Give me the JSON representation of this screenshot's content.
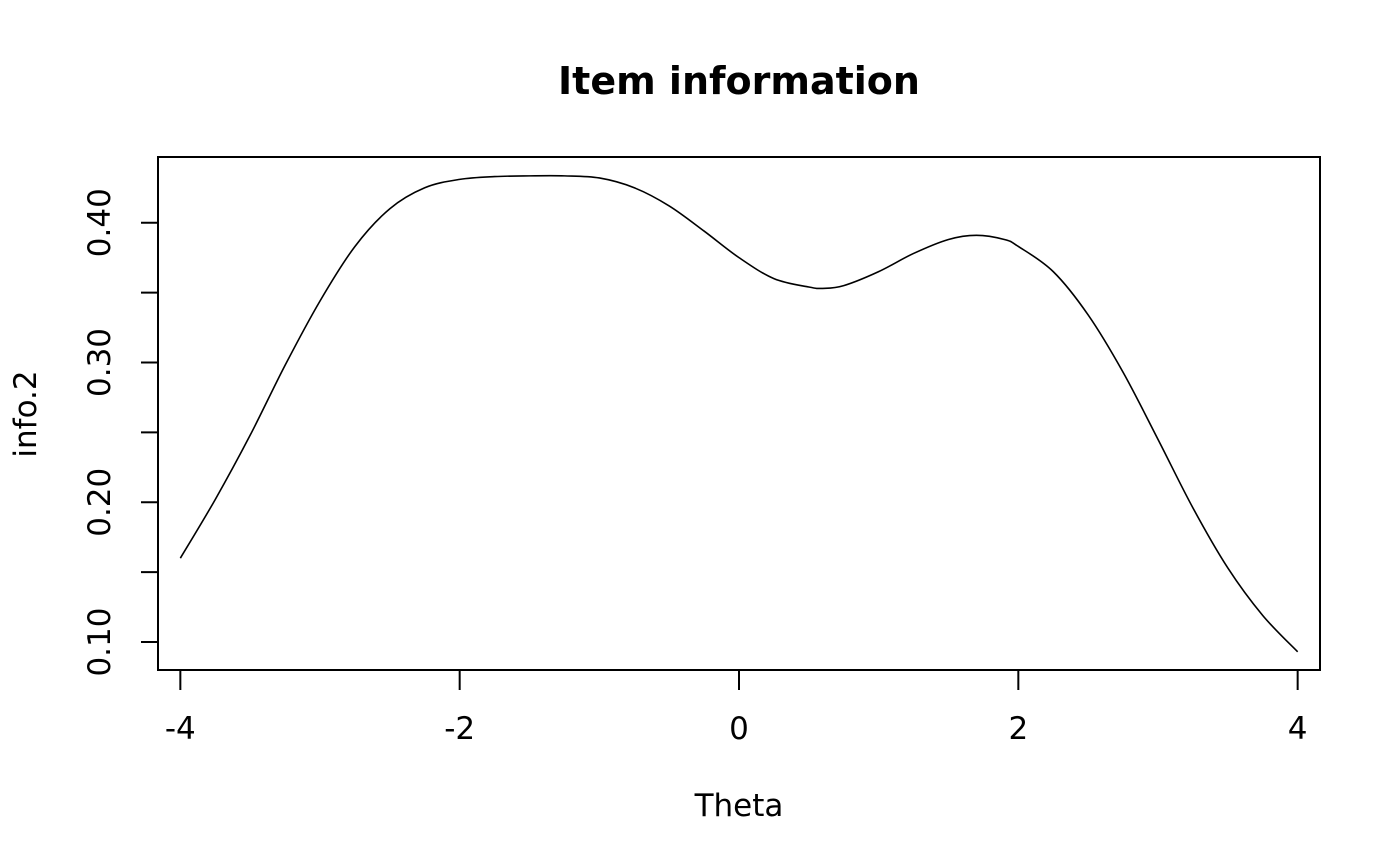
{
  "chart_data": {
    "type": "line",
    "title": "Item information",
    "xlabel": "Theta",
    "ylabel": "info.2",
    "xlim": [
      -4.16,
      4.16
    ],
    "ylim": [
      0.08,
      0.447
    ],
    "x_ticks": [
      -4,
      -2,
      0,
      2,
      4
    ],
    "x_tick_labels": [
      "-4",
      "-2",
      "0",
      "2",
      "4"
    ],
    "y_ticks": [
      0.1,
      0.15,
      0.2,
      0.25,
      0.3,
      0.35,
      0.4
    ],
    "y_tick_labels": [
      "0.10",
      "",
      "0.20",
      "",
      "0.30",
      "",
      "0.40"
    ],
    "grid": false,
    "series": [
      {
        "x": [
          -4.0,
          -3.75,
          -3.5,
          -3.25,
          -3.0,
          -2.75,
          -2.5,
          -2.25,
          -2.0,
          -1.75,
          -1.5,
          -1.25,
          -1.0,
          -0.75,
          -0.5,
          -0.25,
          0.0,
          0.25,
          0.5,
          0.6,
          0.75,
          1.0,
          1.25,
          1.5,
          1.7,
          1.9,
          2.0,
          2.25,
          2.5,
          2.75,
          3.0,
          3.25,
          3.5,
          3.75,
          4.0
        ],
        "y": [
          0.16,
          0.202,
          0.248,
          0.298,
          0.344,
          0.383,
          0.41,
          0.425,
          0.431,
          0.433,
          0.4335,
          0.4335,
          0.432,
          0.425,
          0.412,
          0.394,
          0.375,
          0.36,
          0.354,
          0.353,
          0.355,
          0.365,
          0.378,
          0.388,
          0.391,
          0.388,
          0.383,
          0.365,
          0.334,
          0.293,
          0.245,
          0.196,
          0.153,
          0.119,
          0.093
        ]
      }
    ]
  }
}
